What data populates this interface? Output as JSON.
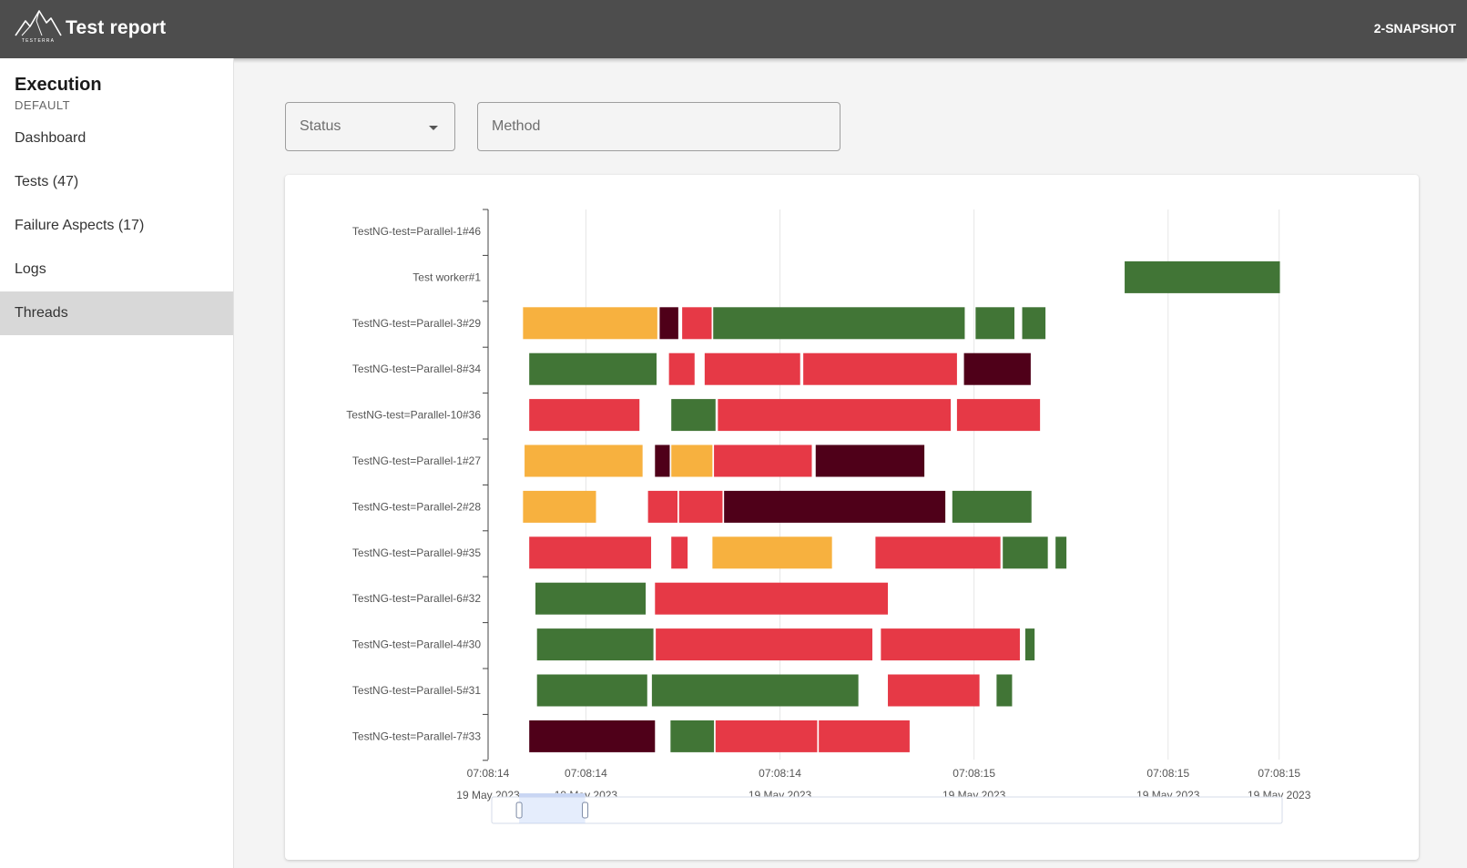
{
  "header": {
    "app_title": "Test report",
    "version": "2-SNAPSHOT",
    "logo_text": "TESTERRA"
  },
  "sidebar": {
    "title": "Execution",
    "subtitle": "DEFAULT",
    "items": [
      {
        "label": "Dashboard",
        "active": false
      },
      {
        "label": "Tests (47)",
        "active": false
      },
      {
        "label": "Failure Aspects (17)",
        "active": false
      },
      {
        "label": "Logs",
        "active": false
      },
      {
        "label": "Threads",
        "active": true
      }
    ]
  },
  "filters": {
    "status_placeholder": "Status",
    "method_placeholder": "Method"
  },
  "colors": {
    "passed": "#417536",
    "failed": "#e63946",
    "skipped": "#f7b13f",
    "crashed": "#4f0019"
  },
  "chart_data": {
    "type": "timeline",
    "threads": [
      "TestNG-test=Parallel-1#46",
      "Test worker#1",
      "TestNG-test=Parallel-3#29",
      "TestNG-test=Parallel-8#34",
      "TestNG-test=Parallel-10#36",
      "TestNG-test=Parallel-1#27",
      "TestNG-test=Parallel-2#28",
      "TestNG-test=Parallel-9#35",
      "TestNG-test=Parallel-6#32",
      "TestNG-test=Parallel-4#30",
      "TestNG-test=Parallel-5#31",
      "TestNG-test=Parallel-7#33"
    ],
    "ticks": [
      {
        "t": 0,
        "time": "07:08:14",
        "date": "19 May 2023"
      },
      {
        "t": 0.126,
        "time": "07:08:14",
        "date": "19 May 2023"
      },
      {
        "t": 0.376,
        "time": "07:08:14",
        "date": "19 May 2023"
      },
      {
        "t": 0.626,
        "time": "07:08:15",
        "date": "19 May 2023"
      },
      {
        "t": 0.876,
        "time": "07:08:15",
        "date": "19 May 2023"
      },
      {
        "t": 1.019,
        "time": "07:08:15",
        "date": "19 May 2023"
      }
    ],
    "t_min": 0,
    "t_max": 1.019,
    "bars": [
      {
        "row": 1,
        "start": 0.82,
        "end": 1.02,
        "status": "passed"
      },
      {
        "row": 2,
        "start": 0.045,
        "end": 0.218,
        "status": "skipped"
      },
      {
        "row": 2,
        "start": 0.221,
        "end": 0.245,
        "status": "crashed"
      },
      {
        "row": 2,
        "start": 0.25,
        "end": 0.288,
        "status": "failed"
      },
      {
        "row": 2,
        "start": 0.29,
        "end": 0.614,
        "status": "passed"
      },
      {
        "row": 2,
        "start": 0.628,
        "end": 0.678,
        "status": "passed"
      },
      {
        "row": 2,
        "start": 0.688,
        "end": 0.718,
        "status": "passed"
      },
      {
        "row": 3,
        "start": 0.053,
        "end": 0.217,
        "status": "passed"
      },
      {
        "row": 3,
        "start": 0.233,
        "end": 0.266,
        "status": "failed"
      },
      {
        "row": 3,
        "start": 0.279,
        "end": 0.402,
        "status": "failed"
      },
      {
        "row": 3,
        "start": 0.406,
        "end": 0.604,
        "status": "failed"
      },
      {
        "row": 3,
        "start": 0.613,
        "end": 0.699,
        "status": "crashed"
      },
      {
        "row": 4,
        "start": 0.053,
        "end": 0.195,
        "status": "failed"
      },
      {
        "row": 4,
        "start": 0.236,
        "end": 0.293,
        "status": "passed"
      },
      {
        "row": 4,
        "start": 0.296,
        "end": 0.596,
        "status": "failed"
      },
      {
        "row": 4,
        "start": 0.604,
        "end": 0.711,
        "status": "failed"
      },
      {
        "row": 5,
        "start": 0.047,
        "end": 0.199,
        "status": "skipped"
      },
      {
        "row": 5,
        "start": 0.215,
        "end": 0.234,
        "status": "crashed"
      },
      {
        "row": 5,
        "start": 0.236,
        "end": 0.289,
        "status": "skipped"
      },
      {
        "row": 5,
        "start": 0.291,
        "end": 0.417,
        "status": "failed"
      },
      {
        "row": 5,
        "start": 0.422,
        "end": 0.562,
        "status": "crashed"
      },
      {
        "row": 6,
        "start": 0.045,
        "end": 0.139,
        "status": "skipped"
      },
      {
        "row": 6,
        "start": 0.206,
        "end": 0.244,
        "status": "failed"
      },
      {
        "row": 6,
        "start": 0.246,
        "end": 0.302,
        "status": "failed"
      },
      {
        "row": 6,
        "start": 0.304,
        "end": 0.589,
        "status": "crashed"
      },
      {
        "row": 6,
        "start": 0.598,
        "end": 0.7,
        "status": "passed"
      },
      {
        "row": 7,
        "start": 0.053,
        "end": 0.21,
        "status": "failed"
      },
      {
        "row": 7,
        "start": 0.236,
        "end": 0.257,
        "status": "failed"
      },
      {
        "row": 7,
        "start": 0.289,
        "end": 0.443,
        "status": "skipped"
      },
      {
        "row": 7,
        "start": 0.499,
        "end": 0.66,
        "status": "failed"
      },
      {
        "row": 7,
        "start": 0.663,
        "end": 0.721,
        "status": "passed"
      },
      {
        "row": 7,
        "start": 0.731,
        "end": 0.745,
        "status": "passed"
      },
      {
        "row": 8,
        "start": 0.061,
        "end": 0.203,
        "status": "passed"
      },
      {
        "row": 8,
        "start": 0.215,
        "end": 0.515,
        "status": "failed"
      },
      {
        "row": 9,
        "start": 0.063,
        "end": 0.213,
        "status": "passed"
      },
      {
        "row": 9,
        "start": 0.216,
        "end": 0.495,
        "status": "failed"
      },
      {
        "row": 9,
        "start": 0.506,
        "end": 0.685,
        "status": "failed"
      },
      {
        "row": 9,
        "start": 0.692,
        "end": 0.704,
        "status": "passed"
      },
      {
        "row": 10,
        "start": 0.063,
        "end": 0.205,
        "status": "passed"
      },
      {
        "row": 10,
        "start": 0.211,
        "end": 0.477,
        "status": "passed"
      },
      {
        "row": 10,
        "start": 0.515,
        "end": 0.633,
        "status": "failed"
      },
      {
        "row": 10,
        "start": 0.655,
        "end": 0.675,
        "status": "passed"
      },
      {
        "row": 11,
        "start": 0.053,
        "end": 0.215,
        "status": "crashed"
      },
      {
        "row": 11,
        "start": 0.235,
        "end": 0.291,
        "status": "passed"
      },
      {
        "row": 11,
        "start": 0.293,
        "end": 0.424,
        "status": "failed"
      },
      {
        "row": 11,
        "start": 0.426,
        "end": 0.543,
        "status": "failed"
      }
    ],
    "zoom_range": [
      0.04,
      0.125
    ]
  }
}
